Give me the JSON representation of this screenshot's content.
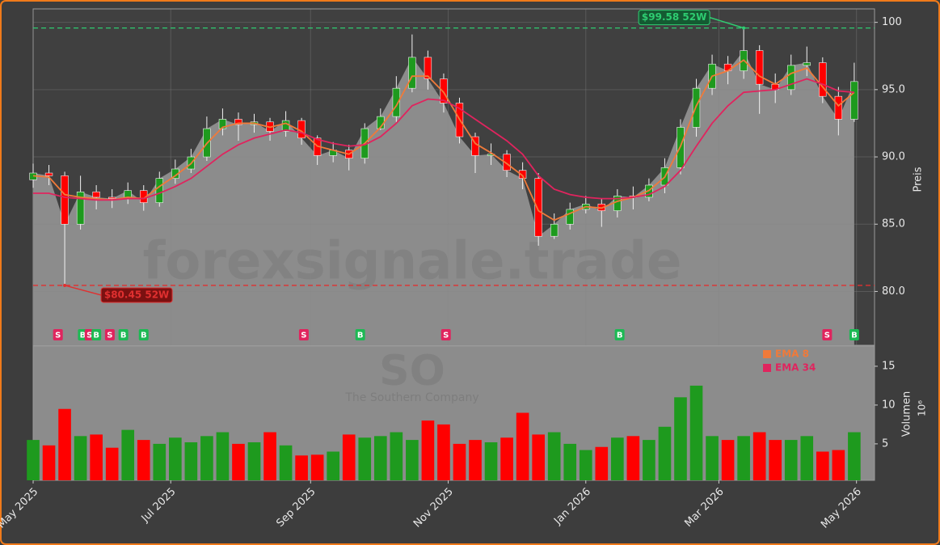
{
  "chart_data": {
    "type": "candlestick",
    "watermark": "forexsignale.trade",
    "symbol": "SO",
    "company": "The Southern Company",
    "ylabel": "Preis",
    "y2label": "Volumen",
    "y2_scale_label": "10⁶",
    "x": [
      "2025-05-01",
      "2025-05-08",
      "2025-05-15",
      "2025-05-22",
      "2025-05-29",
      "2025-06-05",
      "2025-06-12",
      "2025-06-19",
      "2025-06-26",
      "2025-07-03",
      "2025-07-10",
      "2025-07-17",
      "2025-07-24",
      "2025-07-31",
      "2025-08-07",
      "2025-08-14",
      "2025-08-21",
      "2025-08-28",
      "2025-09-04",
      "2025-09-11",
      "2025-09-18",
      "2025-09-25",
      "2025-10-02",
      "2025-10-09",
      "2025-10-16",
      "2025-10-23",
      "2025-10-30",
      "2025-11-06",
      "2025-11-13",
      "2025-11-20",
      "2025-11-27",
      "2025-12-04",
      "2025-12-11",
      "2025-12-18",
      "2025-12-25",
      "2026-01-01",
      "2026-01-08",
      "2026-01-15",
      "2026-01-22",
      "2026-01-29",
      "2026-02-05",
      "2026-02-12",
      "2026-02-19",
      "2026-02-26",
      "2026-03-05",
      "2026-03-12",
      "2026-03-19",
      "2026-03-26",
      "2026-04-02",
      "2026-04-09",
      "2026-04-16",
      "2026-04-23",
      "2026-04-30"
    ],
    "open": [
      88.3,
      88.8,
      88.6,
      85.0,
      87.4,
      87.0,
      86.9,
      87.5,
      86.6,
      88.4,
      89.1,
      90.0,
      92.1,
      92.8,
      92.4,
      92.6,
      91.9,
      92.7,
      91.4,
      90.1,
      90.5,
      89.9,
      92.1,
      93.0,
      95.1,
      97.4,
      95.8,
      94.0,
      91.5,
      90.1,
      90.2,
      89.0,
      88.4,
      84.1,
      85.0,
      86.1,
      86.5,
      86.0,
      87.1,
      87.0,
      87.9,
      89.2,
      92.2,
      95.1,
      96.9,
      96.4,
      97.9,
      95.4,
      95.0,
      96.8,
      97.0,
      94.5,
      92.8
    ],
    "high": [
      89.5,
      89.4,
      88.9,
      88.6,
      87.9,
      87.6,
      88.1,
      87.9,
      88.9,
      89.8,
      90.6,
      93.0,
      93.6,
      93.3,
      93.2,
      92.9,
      93.4,
      92.9,
      91.6,
      91.1,
      90.9,
      92.5,
      93.6,
      96.0,
      99.1,
      97.9,
      96.2,
      94.4,
      91.8,
      91.0,
      90.5,
      89.6,
      88.8,
      85.8,
      86.6,
      87.1,
      86.9,
      87.6,
      87.8,
      88.4,
      89.9,
      92.8,
      95.8,
      97.6,
      97.5,
      99.58,
      98.3,
      96.2,
      97.6,
      98.2,
      97.4,
      95.2,
      97.0
    ],
    "low": [
      87.7,
      87.9,
      80.45,
      84.6,
      86.1,
      86.2,
      86.5,
      86.0,
      86.3,
      88.0,
      88.8,
      89.7,
      91.6,
      91.2,
      91.8,
      91.2,
      91.5,
      90.9,
      89.4,
      89.6,
      89.0,
      89.5,
      92.0,
      92.6,
      94.8,
      95.0,
      93.3,
      91.0,
      88.8,
      89.4,
      88.5,
      87.6,
      83.4,
      83.9,
      84.6,
      85.8,
      84.8,
      85.5,
      86.1,
      86.7,
      87.3,
      88.7,
      91.5,
      94.6,
      95.4,
      95.8,
      93.2,
      94.0,
      94.6,
      96.0,
      94.0,
      91.6,
      92.6
    ],
    "close": [
      88.8,
      88.6,
      85.0,
      87.4,
      87.0,
      86.9,
      87.5,
      86.6,
      88.4,
      89.1,
      90.0,
      92.1,
      92.8,
      92.4,
      92.6,
      91.9,
      92.7,
      91.4,
      90.1,
      90.5,
      89.9,
      92.1,
      93.0,
      95.1,
      97.4,
      95.8,
      94.0,
      91.5,
      90.1,
      90.2,
      89.0,
      88.4,
      84.1,
      85.0,
      86.1,
      86.5,
      86.0,
      87.1,
      87.0,
      87.9,
      89.2,
      92.2,
      95.1,
      96.9,
      96.4,
      97.9,
      95.4,
      95.0,
      96.8,
      97.0,
      94.5,
      92.8,
      95.6
    ],
    "volume": [
      5.5,
      4.8,
      9.5,
      6.0,
      6.2,
      4.5,
      6.8,
      5.5,
      5.0,
      5.8,
      5.2,
      6.0,
      6.5,
      5.0,
      5.2,
      6.5,
      4.8,
      3.5,
      3.6,
      4.0,
      6.2,
      5.8,
      6.0,
      6.5,
      5.5,
      8.0,
      7.5,
      5.0,
      5.5,
      5.2,
      5.8,
      9.0,
      6.2,
      6.5,
      5.0,
      4.2,
      4.6,
      5.8,
      6.0,
      5.5,
      7.2,
      11.0,
      12.5,
      6.0,
      5.5,
      6.0,
      6.5,
      5.5,
      5.5,
      6.0,
      4.0,
      4.2,
      6.5
    ],
    "up_color": "#1e9a1e",
    "down_color": "#ff0000",
    "area_color": "#8c8c8c",
    "series": [
      {
        "name": "EMA 8",
        "color": "#f07a3a",
        "values": [
          88.6,
          88.5,
          87.2,
          87.0,
          86.9,
          86.8,
          87.0,
          86.9,
          87.8,
          88.6,
          89.5,
          91.0,
          92.2,
          92.5,
          92.5,
          92.2,
          92.5,
          91.9,
          90.8,
          90.5,
          90.2,
          91.0,
          92.2,
          93.8,
          96.0,
          96.0,
          94.8,
          92.8,
          91.0,
          90.3,
          89.5,
          88.6,
          86.0,
          85.3,
          85.8,
          86.3,
          86.2,
          86.7,
          87.0,
          87.5,
          88.5,
          90.8,
          93.8,
          96.0,
          96.4,
          97.2,
          96.0,
          95.4,
          96.2,
          96.6,
          95.2,
          93.8,
          94.8
        ]
      },
      {
        "name": "EMA 34",
        "color": "#e0245e",
        "values": [
          87.3,
          87.3,
          87.0,
          86.9,
          86.8,
          86.8,
          86.9,
          86.9,
          87.3,
          87.8,
          88.4,
          89.3,
          90.2,
          90.9,
          91.4,
          91.7,
          92.0,
          91.8,
          91.3,
          91.0,
          90.8,
          90.9,
          91.5,
          92.5,
          93.8,
          94.3,
          94.2,
          93.6,
          92.8,
          92.0,
          91.2,
          90.2,
          88.6,
          87.6,
          87.2,
          87.0,
          86.9,
          86.9,
          87.0,
          87.2,
          87.8,
          89.0,
          90.8,
          92.5,
          93.8,
          94.8,
          94.9,
          95.0,
          95.4,
          95.8,
          95.4,
          94.9,
          94.8
        ]
      }
    ],
    "annotations": [
      {
        "text": "$99.58 52W",
        "value": 99.58,
        "date": "2026-03-12",
        "color": "#2ecc71"
      },
      {
        "text": "$80.45 52W",
        "value": 80.45,
        "date": "2025-05-15",
        "color": "#e03030"
      }
    ],
    "signals": [
      {
        "date": "2025-05-12",
        "label": "S"
      },
      {
        "date": "2025-05-23",
        "label": "B"
      },
      {
        "date": "2025-05-26",
        "label": "S"
      },
      {
        "date": "2025-05-29",
        "label": "B"
      },
      {
        "date": "2025-06-04",
        "label": "S"
      },
      {
        "date": "2025-06-10",
        "label": "B"
      },
      {
        "date": "2025-06-19",
        "label": "B"
      },
      {
        "date": "2025-08-29",
        "label": "S"
      },
      {
        "date": "2025-09-23",
        "label": "B"
      },
      {
        "date": "2025-10-31",
        "label": "S"
      },
      {
        "date": "2026-01-16",
        "label": "B"
      },
      {
        "date": "2026-04-18",
        "label": "S"
      },
      {
        "date": "2026-04-30",
        "label": "B"
      }
    ],
    "signal_colors": {
      "S": "#e0245e",
      "B": "#1db954"
    },
    "xlim": [
      "2025-05-01",
      "2026-05-09"
    ],
    "xticks": [
      {
        "value": "2025-05-01",
        "label": "May 2025"
      },
      {
        "value": "2025-07-01",
        "label": "Jul 2025"
      },
      {
        "value": "2025-09-01",
        "label": "Sep 2025"
      },
      {
        "value": "2025-11-01",
        "label": "Nov 2025"
      },
      {
        "value": "2026-01-01",
        "label": "Jan 2026"
      },
      {
        "value": "2026-03-01",
        "label": "Mar 2026"
      },
      {
        "value": "2026-05-01",
        "label": "May 2026"
      }
    ],
    "ylim": [
      76,
      101
    ],
    "yticks": [
      {
        "value": 80,
        "label": "80.0"
      },
      {
        "value": 85,
        "label": "85.0"
      },
      {
        "value": 90,
        "label": "90.0"
      },
      {
        "value": 95,
        "label": "95.0"
      },
      {
        "value": 100,
        "label": "100"
      }
    ],
    "y2lim": [
      0.3,
      17.6
    ],
    "y2ticks": [
      5,
      10,
      15
    ],
    "grid": true
  }
}
